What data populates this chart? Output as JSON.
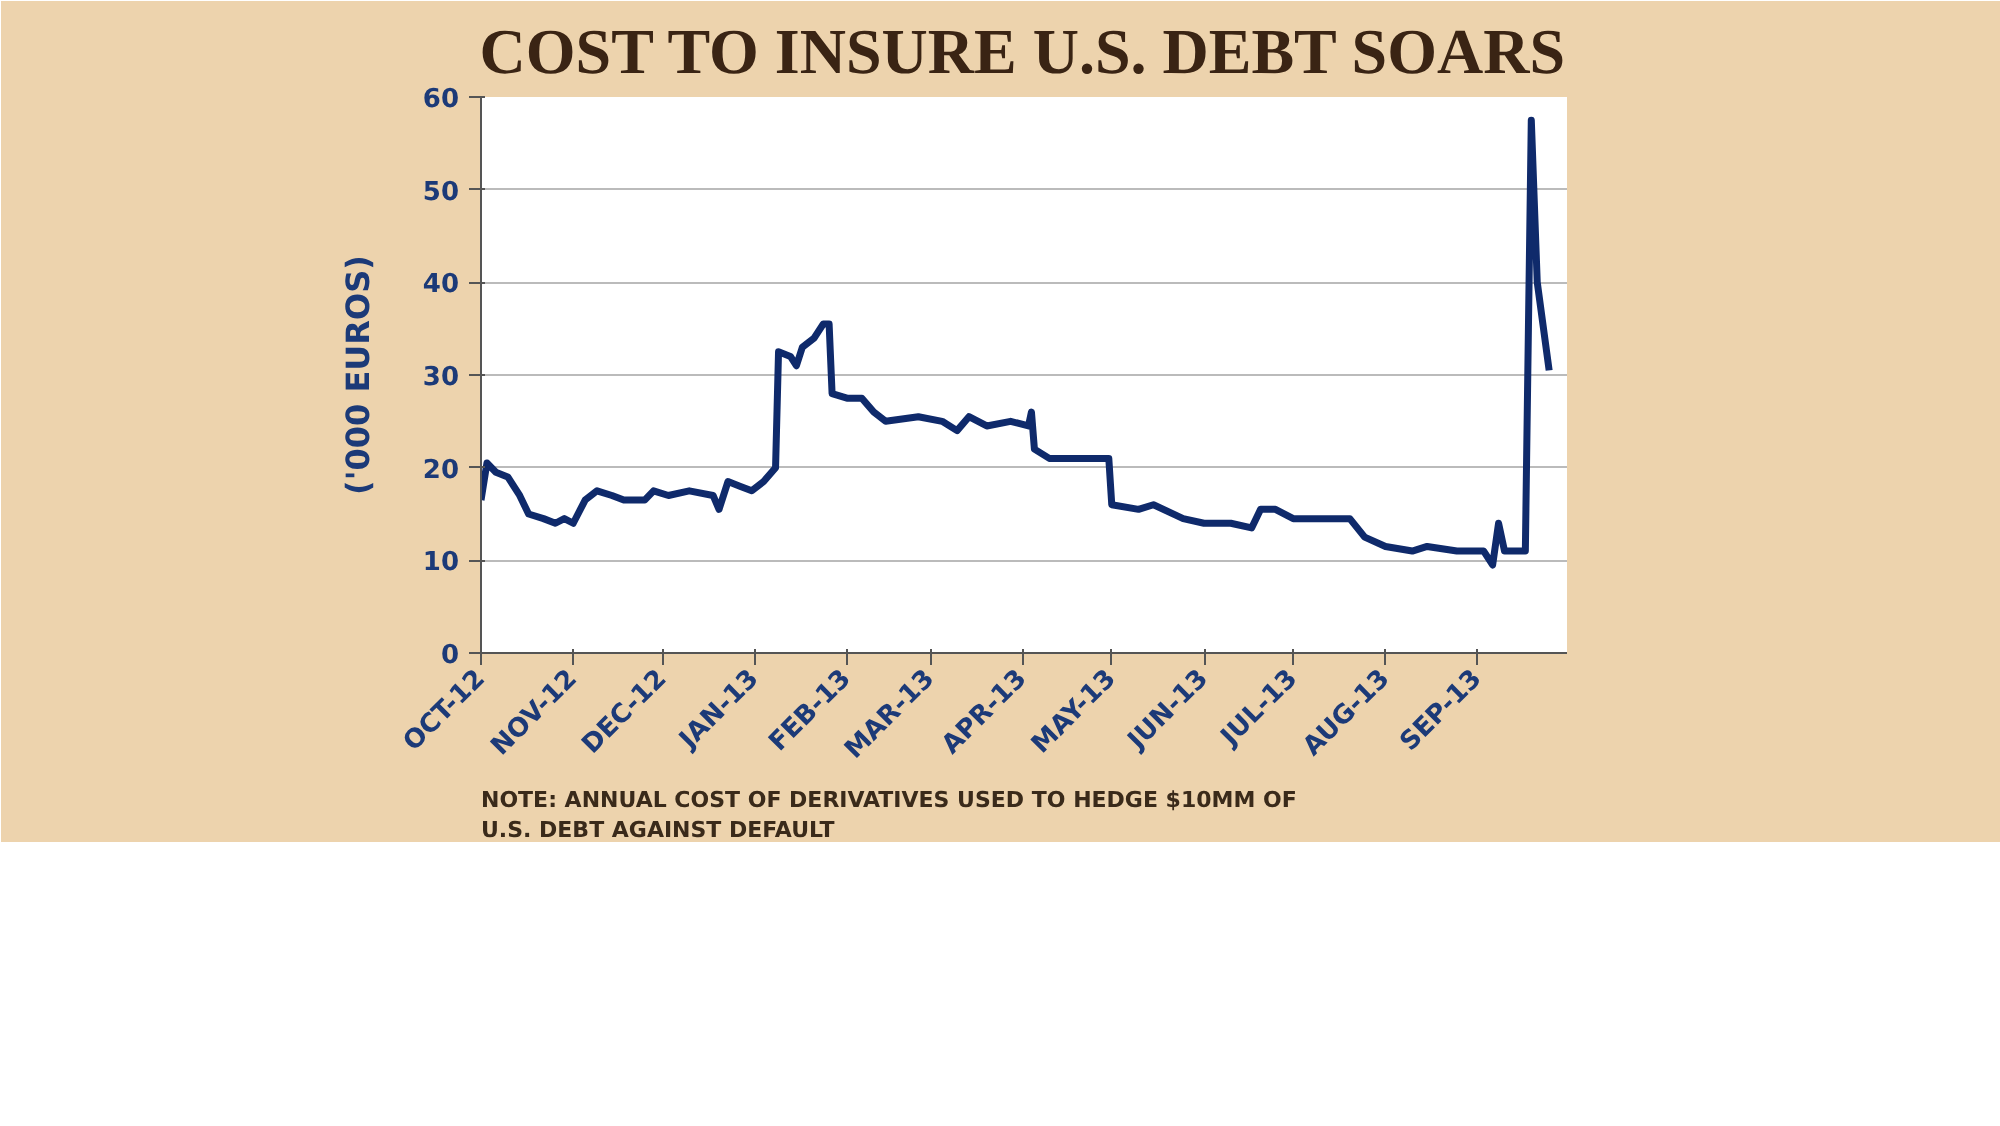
{
  "chart_data": {
    "type": "line",
    "title": "COST TO INSURE U.S. DEBT SOARS",
    "ylabel": "('000 EUROS)",
    "annotations": [
      "NOTE: ANNUAL COST OF  DERIVATIVES USED TO HEDGE $10MM OF U.S. DEBT AGAINST DEFAULT"
    ],
    "x": [
      "2012-10-01",
      "2012-10-03",
      "2012-10-06",
      "2012-10-10",
      "2012-10-14",
      "2012-10-17",
      "2012-10-22",
      "2012-10-26",
      "2012-10-29",
      "2012-11-01",
      "2012-11-05",
      "2012-11-09",
      "2012-11-14",
      "2012-11-18",
      "2012-11-25",
      "2012-11-28",
      "2012-12-03",
      "2012-12-10",
      "2012-12-18",
      "2012-12-20",
      "2012-12-23",
      "2012-12-27",
      "2012-12-31",
      "2013-01-04",
      "2013-01-08",
      "2013-01-09",
      "2013-01-13",
      "2013-01-15",
      "2013-01-17",
      "2013-01-21",
      "2013-01-24",
      "2013-01-26",
      "2013-01-27",
      "2013-02-01",
      "2013-02-06",
      "2013-02-10",
      "2013-02-14",
      "2013-02-25",
      "2013-03-05",
      "2013-03-10",
      "2013-03-14",
      "2013-03-20",
      "2013-03-28",
      "2013-04-03",
      "2013-04-04",
      "2013-04-05",
      "2013-04-10",
      "2013-04-30",
      "2013-05-01",
      "2013-05-10",
      "2013-05-15",
      "2013-05-25",
      "2013-06-01",
      "2013-06-10",
      "2013-06-17",
      "2013-06-20",
      "2013-06-25",
      "2013-07-01",
      "2013-07-20",
      "2013-07-25",
      "2013-08-01",
      "2013-08-10",
      "2013-08-15",
      "2013-08-25",
      "2013-09-03",
      "2013-09-06",
      "2013-09-08",
      "2013-09-10",
      "2013-09-17",
      "2013-09-19",
      "2013-09-21",
      "2013-09-25"
    ],
    "series": [
      {
        "color": "#0f2a6b",
        "values": [
          16.5,
          20.5,
          19.5,
          19,
          17,
          15,
          14.5,
          14,
          14.5,
          14,
          16.5,
          17.5,
          17,
          16.5,
          16.5,
          17.5,
          17,
          17.5,
          17,
          15.5,
          18.5,
          18,
          17.5,
          18.5,
          20,
          32.5,
          32,
          31,
          33,
          34,
          35.5,
          35.5,
          28,
          27.5,
          27.5,
          26,
          25,
          25.5,
          25,
          24,
          25.5,
          24.5,
          25,
          24.5,
          26,
          22,
          21,
          21,
          16,
          15.5,
          16,
          14.5,
          14,
          14,
          13.5,
          15.5,
          15.5,
          14.5,
          14.5,
          12.5,
          11.5,
          11,
          11.5,
          11,
          11,
          9.5,
          14,
          11,
          11,
          57.5,
          40,
          30.5
        ]
      }
    ],
    "xlim": [
      "2012-10-01",
      "2013-10-01"
    ],
    "xticks": [
      {
        "value": "2012-10-01",
        "label": "OCT-12"
      },
      {
        "value": "2012-11-01",
        "label": "NOV-12"
      },
      {
        "value": "2012-12-01",
        "label": "DEC-12"
      },
      {
        "value": "2013-01-01",
        "label": "JAN-13"
      },
      {
        "value": "2013-02-01",
        "label": "FEB-13"
      },
      {
        "value": "2013-03-01",
        "label": "MAR-13"
      },
      {
        "value": "2013-04-01",
        "label": "APR-13"
      },
      {
        "value": "2013-05-01",
        "label": "MAY-13"
      },
      {
        "value": "2013-06-01",
        "label": "JUN-13"
      },
      {
        "value": "2013-07-01",
        "label": "JUL-13"
      },
      {
        "value": "2013-08-01",
        "label": "AUG-13"
      },
      {
        "value": "2013-09-01",
        "label": "SEP-13"
      }
    ],
    "ylim": [
      0,
      60
    ],
    "yticks": [
      0,
      10,
      20,
      30,
      40,
      50,
      60
    ],
    "grid": "y"
  }
}
